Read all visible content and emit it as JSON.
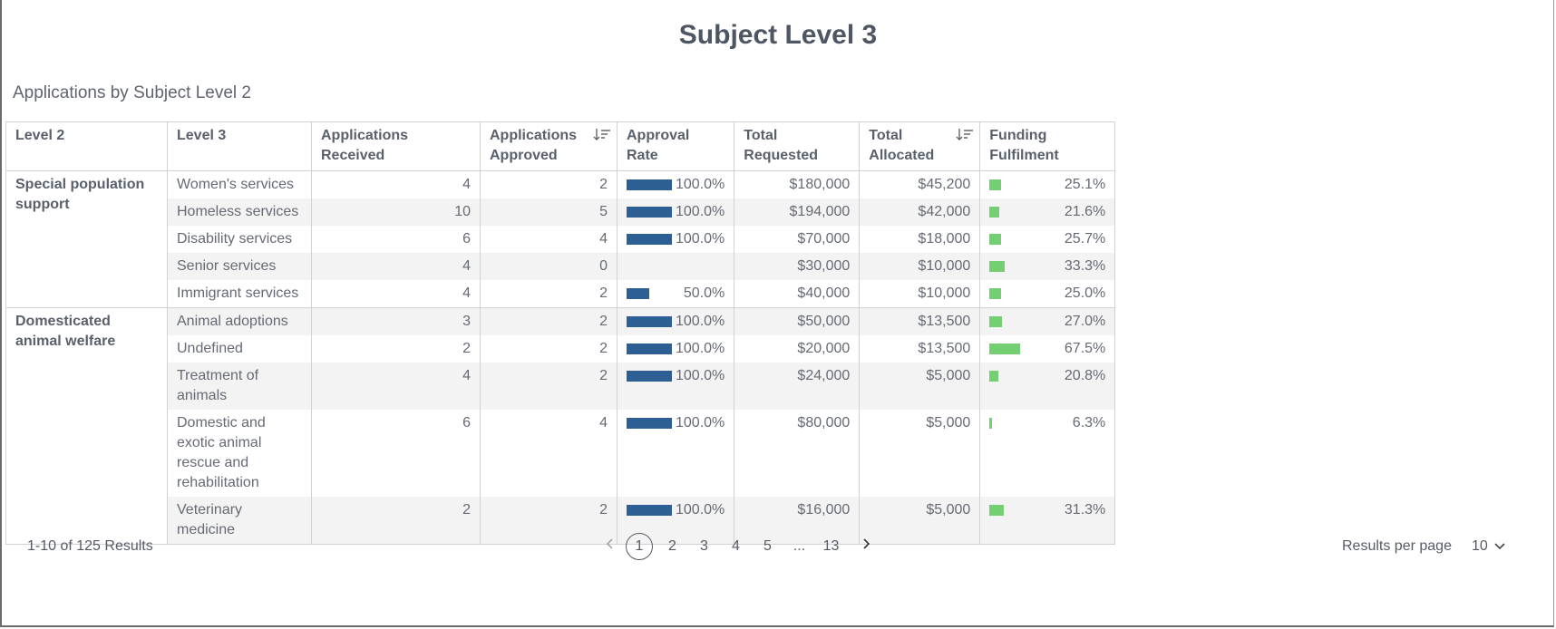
{
  "title": "Subject Level 3",
  "subtitle": "Applications by Subject Level 2",
  "table": {
    "headers": {
      "level2": "Level 2",
      "level3": "Level 3",
      "received_line1": "Applications",
      "received_line2": "Received",
      "approved_line1": "Applications",
      "approved_line2": "Approved",
      "rate_line1": "Approval",
      "rate_line2": "Rate",
      "requested_line1": "Total",
      "requested_line2": "Requested",
      "allocated_line1": "Total",
      "allocated_line2": "Allocated",
      "fulfilment_line1": "Funding",
      "fulfilment_line2": "Fulfilment"
    },
    "groups": [
      {
        "level2": "Special population support",
        "rows": [
          {
            "level3": "Women's services",
            "received": "4",
            "approved": "2",
            "rate": "100.0%",
            "rate_value": 1.0,
            "requested": "$180,000",
            "allocated": "$45,200",
            "fulfilment": "25.1%",
            "fulfilment_value": 0.251
          },
          {
            "level3": "Homeless services",
            "received": "10",
            "approved": "5",
            "rate": "100.0%",
            "rate_value": 1.0,
            "requested": "$194,000",
            "allocated": "$42,000",
            "fulfilment": "21.6%",
            "fulfilment_value": 0.216
          },
          {
            "level3": "Disability services",
            "received": "6",
            "approved": "4",
            "rate": "100.0%",
            "rate_value": 1.0,
            "requested": "$70,000",
            "allocated": "$18,000",
            "fulfilment": "25.7%",
            "fulfilment_value": 0.257
          },
          {
            "level3": "Senior services",
            "received": "4",
            "approved": "0",
            "rate": "",
            "rate_value": 0,
            "requested": "$30,000",
            "allocated": "$10,000",
            "fulfilment": "33.3%",
            "fulfilment_value": 0.333
          },
          {
            "level3": "Immigrant services",
            "received": "4",
            "approved": "2",
            "rate": "50.0%",
            "rate_value": 0.5,
            "requested": "$40,000",
            "allocated": "$10,000",
            "fulfilment": "25.0%",
            "fulfilment_value": 0.25
          }
        ]
      },
      {
        "level2": "Domesticated animal welfare",
        "rows": [
          {
            "level3": "Animal adoptions",
            "received": "3",
            "approved": "2",
            "rate": "100.0%",
            "rate_value": 1.0,
            "requested": "$50,000",
            "allocated": "$13,500",
            "fulfilment": "27.0%",
            "fulfilment_value": 0.27
          },
          {
            "level3": "Undefined",
            "received": "2",
            "approved": "2",
            "rate": "100.0%",
            "rate_value": 1.0,
            "requested": "$20,000",
            "allocated": "$13,500",
            "fulfilment": "67.5%",
            "fulfilment_value": 0.675
          },
          {
            "level3": "Treatment of animals",
            "received": "4",
            "approved": "2",
            "rate": "100.0%",
            "rate_value": 1.0,
            "requested": "$24,000",
            "allocated": "$5,000",
            "fulfilment": "20.8%",
            "fulfilment_value": 0.208
          },
          {
            "level3": "Domestic and exotic animal rescue and rehabilitation",
            "received": "6",
            "approved": "4",
            "rate": "100.0%",
            "rate_value": 1.0,
            "requested": "$80,000",
            "allocated": "$5,000",
            "fulfilment": "6.3%",
            "fulfilment_value": 0.063
          },
          {
            "level3": "Veterinary medicine",
            "received": "2",
            "approved": "2",
            "rate": "100.0%",
            "rate_value": 1.0,
            "requested": "$16,000",
            "allocated": "$5,000",
            "fulfilment": "31.3%",
            "fulfilment_value": 0.313
          }
        ]
      }
    ]
  },
  "footer": {
    "results": "1-10 of 125 Results",
    "pages": [
      "1",
      "2",
      "3",
      "4",
      "5",
      "...",
      "13"
    ],
    "active_page": "1",
    "results_per_page_label": "Results per page",
    "results_per_page_value": "10"
  },
  "colors": {
    "rate_bar": "#2e5f94",
    "fulfilment_bar": "#74cf72"
  },
  "icons": {
    "sort": "sort-descending-icon",
    "prev": "chevron-left-icon",
    "next": "chevron-right-icon",
    "dropdown": "chevron-down-icon"
  }
}
